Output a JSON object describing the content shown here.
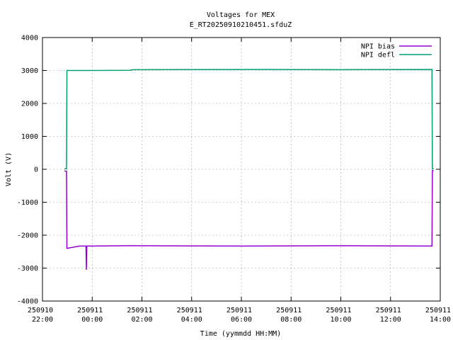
{
  "chart_data": {
    "type": "line",
    "title": "Voltages for MEX",
    "subtitle": "E_RT20250910210451.sfduZ",
    "x_label": "Time (yymmdd HH:MM)",
    "y_label": "Volt (V)",
    "x": [
      "250910 22:53",
      "250910 22:58",
      "250910 22:59",
      "250910 23:30",
      "250910 23:45",
      "250910 23:46",
      "250910 23:47",
      "250911 01:30",
      "250911 01:40",
      "250911 06:00",
      "250911 10:00",
      "250911 13:40",
      "250911 13:41",
      "250911 13:44"
    ],
    "series": [
      {
        "name": "NPI bias",
        "color": "#9400d3",
        "values": [
          -50,
          -60,
          -2400,
          -2330,
          -2330,
          -3050,
          -2330,
          -2320,
          -2320,
          -2330,
          -2320,
          -2330,
          -40,
          -40
        ]
      },
      {
        "name": "NPI defl",
        "color": "#009e73",
        "values": [
          20,
          10,
          3000,
          3000,
          3000,
          3000,
          3000,
          3005,
          3025,
          3030,
          3025,
          3030,
          10,
          20
        ]
      }
    ],
    "xlim": [
      "250910 22:00",
      "250911 14:00"
    ],
    "xticks": [
      "250910 22:00",
      "250911 00:00",
      "250911 02:00",
      "250911 04:00",
      "250911 06:00",
      "250911 08:00",
      "250911 10:00",
      "250911 12:00",
      "250911 14:00"
    ],
    "ylim": [
      -4000,
      4000
    ],
    "yticks": [
      -4000,
      -3000,
      -2000,
      -1000,
      0,
      1000,
      2000,
      3000,
      4000
    ],
    "grid": true,
    "legend": "top-right"
  }
}
